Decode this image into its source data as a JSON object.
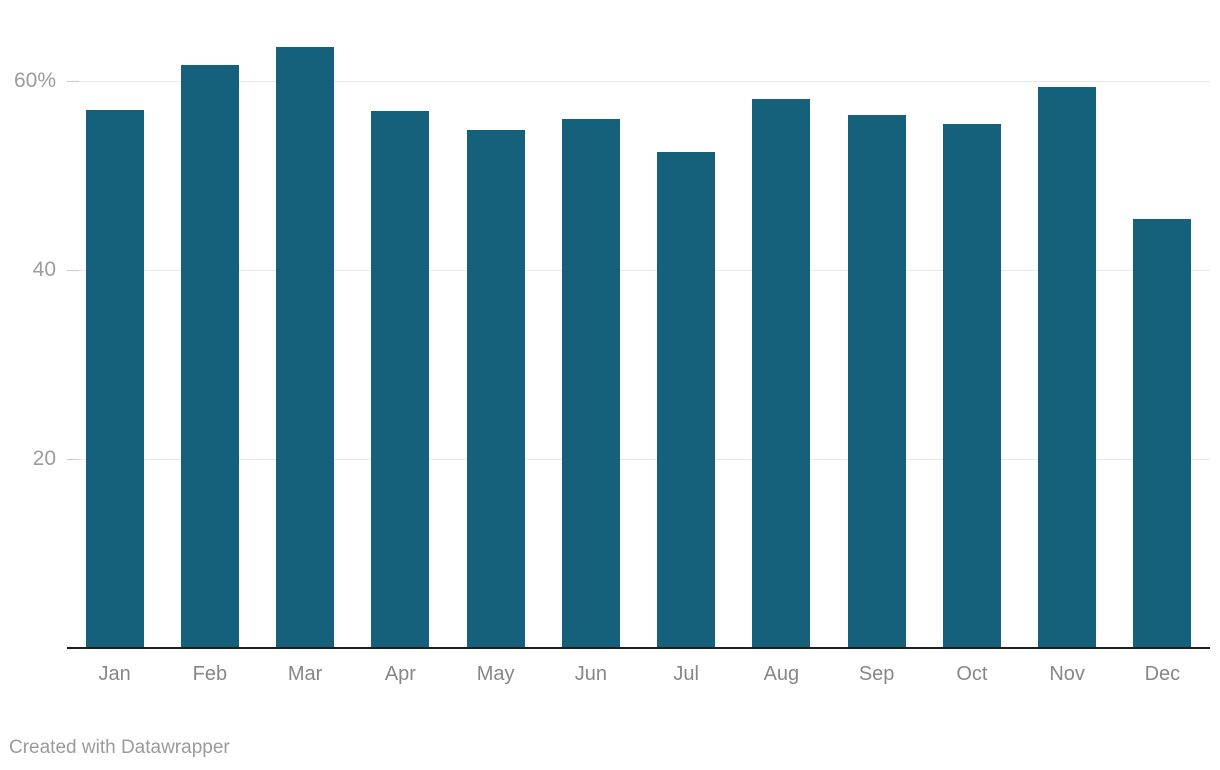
{
  "chart_data": {
    "type": "bar",
    "categories": [
      "Jan",
      "Feb",
      "Mar",
      "Apr",
      "May",
      "Jun",
      "Jul",
      "Aug",
      "Sep",
      "Oct",
      "Nov",
      "Dec"
    ],
    "values": [
      56.9,
      61.6,
      63.5,
      56.7,
      54.7,
      55.9,
      52.4,
      58.0,
      56.3,
      55.4,
      59.3,
      45.3
    ],
    "title": "",
    "xlabel": "",
    "ylabel": "",
    "ylim": [
      0,
      68.6
    ],
    "yticks": [
      {
        "value": 20,
        "label": "20"
      },
      {
        "value": 40,
        "label": "40"
      },
      {
        "value": 60,
        "label": "60%"
      }
    ],
    "grid": true,
    "legend": "none",
    "bar_color": "#15607a"
  },
  "colors": {
    "bar": "#15607a",
    "gridline": "#e8e8e8",
    "tick": "#c9c9c9",
    "baseline": "#1f1f1f",
    "y_label_text": "#9c9c9c",
    "x_label_text": "#878787",
    "footer_text": "#9b9b9b",
    "background": "#ffffff"
  },
  "footer": {
    "credit": "Created with Datawrapper"
  }
}
